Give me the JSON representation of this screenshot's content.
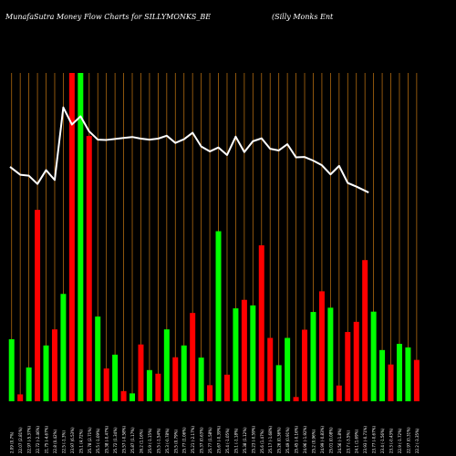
{
  "header": {
    "title": "MunafaSutra  Money Flow  Charts for SILLYMONKS_BE",
    "company": "(Silly Monks Ent"
  },
  "colors": {
    "background": "#000000",
    "grid": "#b06a10",
    "up": "#00ff00",
    "down": "#ff0000",
    "line": "#ffffff",
    "text": "#ffffff"
  },
  "chart_data": {
    "type": "bar",
    "grid": true,
    "title": "MunafaSutra  Money Flow  Charts for SILLYMONKS_BE",
    "xlabel": "",
    "ylabel": "",
    "ylim": [
      0,
      100
    ],
    "dates": [
      "09 Fri Feb 2024",
      "12 Mon Feb 2024",
      "13 Tue Feb 2024",
      "14 Wed Feb 2024",
      "15 Thu Feb 2024",
      "16 Fri Feb 2024",
      "19 Mon Feb 2024",
      "20 Tue Feb 2024",
      "21 Wed Feb 2024",
      "22 Thu Feb 2024",
      "23 Fri Feb 2024",
      "26 Mon Feb 2024",
      "27 Tue Feb 2024",
      "28 Wed Feb 2024",
      "29 Thu Feb 2024",
      "01 Fri Mar 2024",
      "02 Sat Mar 2024",
      "04 Mon Mar 2024",
      "05 Tue Mar 2024",
      "06 Wed Mar 2024",
      "07 Thu Mar 2024",
      "11 Mon Mar 2024",
      "12 Tue Mar 2024",
      "13 Wed Mar 2024",
      "14 Thu Mar 2024",
      "15 Fri Mar 2024",
      "18 Mon Mar 2024",
      "19 Tue Mar 2024",
      "20 Wed Mar 2024",
      "21 Thu Mar 2024",
      "22 Fri Mar 2024",
      "26 Tue Mar 2024",
      "27 Wed Mar 2024",
      "28 Thu Mar 2024",
      "01 Mon Apr 2024",
      "02 Tue Apr 2024",
      "03 Wed Apr 2024",
      "04 Thu Apr 2024",
      "05 Fri Apr 2024",
      "08 Mon Apr 2024",
      "09 Tue Apr 2024",
      "10 Wed Apr 2024",
      "12 Fri Apr 2024",
      "15 Mon Apr 2024",
      "16 Tue Apr 2024",
      "18 Thu Apr 2024",
      "19 Fri Apr 2024",
      "22 Mon Apr 2024"
    ],
    "tick_labels": [
      "2.09 (0.7%)",
      "22.07 (2.81%)",
      "22.97 (-5.37%)",
      "22.72 (-2.46%)",
      "21.75 (-4.67%)",
      "22.8 (0.42%)",
      "22.5 (-1.3%)",
      "23.97 (6.53%)",
      "25.1 (4.72%)",
      "25.78 (2.71%)",
      "25.5 (-1.09%)",
      "25.38 (-0.47%)",
      "25.72 (1.34%)",
      "25.57 (-0.58%)",
      "25.87 (1.17%)",
      "26.2 (1.16%)",
      "25.9 (-1.15%)",
      "25.5 (-1.54%)",
      "25.3 (-0.78%)",
      "25.5 (0.79%)",
      "25.77 (1.06%)",
      "25.21 (-2.17%)",
      "25.37 (0.63%)",
      "25.77 (1.58%)",
      "25.67 (-0.39%)",
      "25.4 (-1.05%)",
      "25.1 (-1.18%)",
      "25.38 (1.12%)",
      "25.23 (-0.59%)",
      "25.6 (1.47%)",
      "25.17 (-1.68%)",
      "25.26 (0.36%)",
      "25.49 (0.91%)",
      "25.45 (-0.16%)",
      "24.96 (-1.92%)",
      "25.2 (0.96%)",
      "24.99 (-0.83%)",
      "25.01 (0.08%)",
      "24.56 (-1.8%)",
      "23.7 (-3.5%)",
      "24.1 (1.69%)",
      "23.93 (-0.71%)",
      "23.77 (-0.67%)",
      "23.4 (-1.56%)",
      "23.3 (-0.43%)",
      "22.9 (-1.72%)",
      "22.97 (0.31%)",
      "22.2 (-3.35%)"
    ],
    "bar_direction": [
      "up",
      "down",
      "up",
      "down",
      "up",
      "down",
      "up",
      "down",
      "up",
      "down",
      "up",
      "down",
      "up",
      "down",
      "up",
      "down",
      "up",
      "down",
      "up",
      "down",
      "up",
      "down",
      "up",
      "down",
      "up",
      "down",
      "up",
      "down",
      "up",
      "down",
      "down",
      "up",
      "up",
      "down",
      "down",
      "up",
      "down",
      "up",
      "down",
      "down",
      "down",
      "down",
      "up",
      "up",
      "down",
      "up",
      "up",
      "down"
    ],
    "volume_values": [
      18.9,
      2.1,
      10.3,
      58.3,
      17.0,
      21.9,
      32.7,
      100,
      100,
      80.8,
      25.8,
      10.0,
      14.2,
      3.1,
      2.4,
      17.3,
      9.5,
      8.4,
      21.9,
      13.4,
      17.0,
      26.9,
      13.3,
      4.9,
      51.8,
      8.1,
      28.3,
      30.9,
      29.2,
      47.5,
      19.3,
      11.0,
      19.3,
      1.3,
      21.8,
      27.2,
      33.5,
      28.5,
      4.8,
      21.1,
      24.2,
      43.0,
      27.3,
      15.6,
      11.2,
      17.5,
      16.4,
      12.6
    ],
    "price_line": [
      71.4,
      69.0,
      68.7,
      66.2,
      70.4,
      67.4,
      89.5,
      84.3,
      86.8,
      82.2,
      79.7,
      79.6,
      79.9,
      80.2,
      80.5,
      80.0,
      79.7,
      80.0,
      80.9,
      78.7,
      79.8,
      81.8,
      77.6,
      76.1,
      77.3,
      75.0,
      80.6,
      75.9,
      79.2,
      80.1,
      76.9,
      76.4,
      78.3,
      74.3,
      74.4,
      73.3,
      71.9,
      69.1,
      71.7,
      66.5,
      65.4,
      63.6
    ],
    "price_line_dates_from": 0
  }
}
